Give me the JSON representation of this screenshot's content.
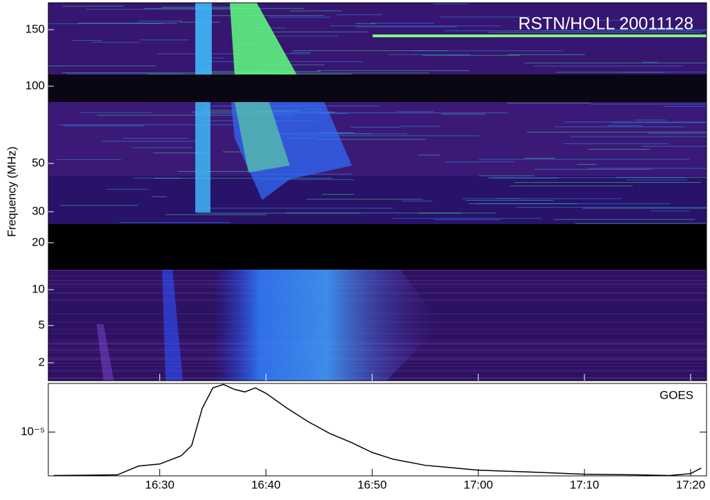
{
  "chart_data": [
    {
      "type": "heatmap",
      "title": "RSTN/HOLL 20011128",
      "ylabel": "Frequency (MHz)",
      "ylim": [
        1,
        180
      ],
      "yticks": [
        150,
        100,
        50,
        30,
        20,
        10,
        5,
        2
      ]
    },
    {
      "type": "line",
      "log_y": true,
      "xlim": [
        "16:19:30",
        "17:21:30"
      ],
      "xticks": [
        "16:30",
        "16:40",
        "16:50",
        "17:00",
        "17:10",
        "17:20"
      ],
      "ylim": [
        1.2e-06,
        0.000105
      ],
      "yticks": [
        {
          "value": 1e-05,
          "label": "10⁻⁵"
        }
      ],
      "series": [
        {
          "name": "GOES",
          "color": "#000000",
          "x": [
            "16:20",
            "16:26",
            "16:28",
            "16:30",
            "16:32",
            "16:33",
            "16:34",
            "16:35",
            "16:36",
            "16:37",
            "16:38",
            "16:39",
            "16:40",
            "16:42",
            "16:44",
            "16:46",
            "16:48",
            "16:50",
            "16:52",
            "16:55",
            "17:00",
            "17:05",
            "17:10",
            "17:15",
            "17:18",
            "17:20",
            "17:21"
          ],
          "values": [
            1.22e-06,
            1.26e-06,
            1.93e-06,
            2.13e-06,
            3.16e-06,
            5.18e-06,
            3.16e-05,
            8.48e-05,
            0.0001,
            7.94e-05,
            6.97e-05,
            8.48e-05,
            6.52e-05,
            3.16e-05,
            1.64e-05,
            9.36e-06,
            6.1e-06,
            3.73e-06,
            2.68e-06,
            2e-06,
            1.58e-06,
            1.44e-06,
            1.3e-06,
            1.26e-06,
            1.22e-06,
            1.34e-06,
            1.75e-06
          ]
        }
      ]
    }
  ]
}
